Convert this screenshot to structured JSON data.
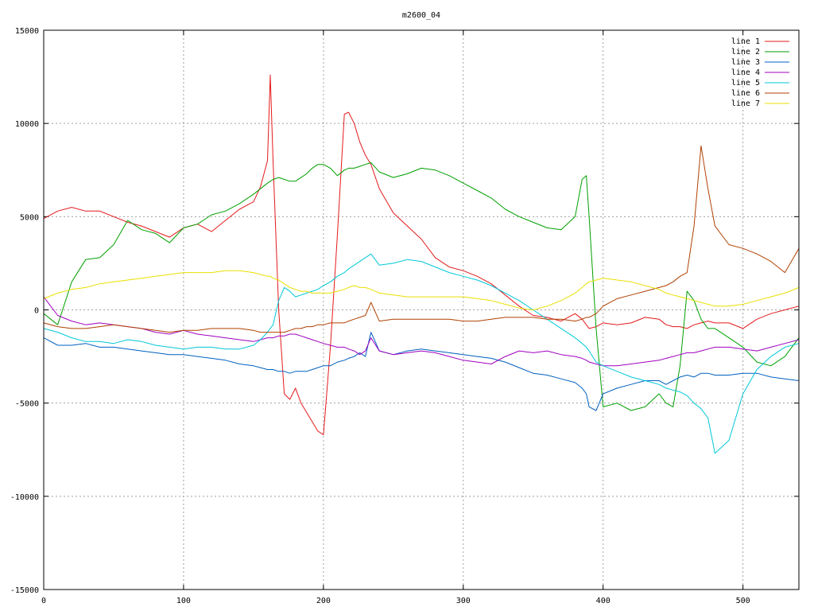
{
  "chart_data": {
    "type": "line",
    "title": "m2600_04",
    "xlabel": "",
    "ylabel": "",
    "xlim": [
      0,
      540
    ],
    "ylim": [
      -15000,
      15000
    ],
    "x_ticks": [
      0,
      100,
      200,
      300,
      400,
      500
    ],
    "y_ticks": [
      -15000,
      -10000,
      -5000,
      0,
      5000,
      10000,
      15000
    ],
    "grid": true,
    "legend_position": "top-right",
    "x": [
      0,
      10,
      20,
      30,
      40,
      50,
      60,
      70,
      80,
      90,
      100,
      110,
      120,
      130,
      140,
      150,
      155,
      160,
      162,
      164,
      168,
      172,
      176,
      180,
      184,
      188,
      192,
      196,
      200,
      205,
      210,
      215,
      218,
      222,
      226,
      230,
      234,
      240,
      250,
      260,
      270,
      280,
      290,
      300,
      310,
      320,
      330,
      340,
      350,
      360,
      370,
      380,
      385,
      388,
      390,
      395,
      400,
      410,
      420,
      430,
      440,
      445,
      450,
      455,
      460,
      465,
      470,
      475,
      480,
      490,
      500,
      510,
      520,
      530,
      540
    ],
    "series": [
      {
        "name": "line 1",
        "color": "#e41a1c",
        "values": [
          4900,
          5300,
          5500,
          5300,
          5300,
          5000,
          4700,
          4500,
          4200,
          3900,
          4400,
          4600,
          4200,
          4800,
          5400,
          5800,
          6600,
          8000,
          12600,
          8000,
          0,
          -4500,
          -4800,
          -4200,
          -5000,
          -5500,
          -6000,
          -6500,
          -6700,
          -2000,
          4000,
          10500,
          10600,
          10000,
          9000,
          8300,
          7800,
          6500,
          5200,
          4500,
          3800,
          2800,
          2300,
          2100,
          1800,
          1400,
          800,
          200,
          -300,
          -400,
          -600,
          -200,
          -500,
          -800,
          -1000,
          -900,
          -700,
          -800,
          -700,
          -400,
          -500,
          -800,
          -900,
          -900,
          -1000,
          -800,
          -700,
          -600,
          -700,
          -700,
          -1000,
          -500,
          -200,
          0,
          200
        ]
      },
      {
        "name": "line 2",
        "color": "#00a000",
        "values": [
          -200,
          -800,
          1500,
          2700,
          2800,
          3500,
          4800,
          4300,
          4100,
          3600,
          4400,
          4600,
          5100,
          5300,
          5700,
          6200,
          6500,
          6800,
          6900,
          7000,
          7100,
          7000,
          6900,
          6900,
          7100,
          7300,
          7600,
          7800,
          7800,
          7600,
          7200,
          7500,
          7600,
          7600,
          7700,
          7800,
          7900,
          7400,
          7100,
          7300,
          7600,
          7500,
          7200,
          6800,
          6400,
          6000,
          5400,
          5000,
          4700,
          4400,
          4300,
          5000,
          7000,
          7200,
          5000,
          -1000,
          -5200,
          -5000,
          -5400,
          -5200,
          -4500,
          -5000,
          -5200,
          -3000,
          1000,
          500,
          -500,
          -1000,
          -1000,
          -1500,
          -2000,
          -2800,
          -3000,
          -2500,
          -1500
        ]
      },
      {
        "name": "line 3",
        "color": "#0060c0",
        "values": [
          -1500,
          -1900,
          -1900,
          -1800,
          -2000,
          -2000,
          -2100,
          -2200,
          -2300,
          -2400,
          -2400,
          -2500,
          -2600,
          -2700,
          -2900,
          -3000,
          -3100,
          -3200,
          -3200,
          -3200,
          -3300,
          -3300,
          -3400,
          -3300,
          -3300,
          -3300,
          -3200,
          -3100,
          -3000,
          -3000,
          -2800,
          -2700,
          -2600,
          -2500,
          -2300,
          -2500,
          -1200,
          -2200,
          -2400,
          -2200,
          -2100,
          -2200,
          -2300,
          -2400,
          -2500,
          -2600,
          -2800,
          -3100,
          -3400,
          -3500,
          -3700,
          -3900,
          -4200,
          -4500,
          -5200,
          -5400,
          -4500,
          -4200,
          -4000,
          -3800,
          -3800,
          -4000,
          -3800,
          -3600,
          -3500,
          -3600,
          -3400,
          -3400,
          -3500,
          -3500,
          -3400,
          -3400,
          -3600,
          -3700,
          -3800
        ]
      },
      {
        "name": "line 4",
        "color": "#a000c0",
        "values": [
          700,
          -300,
          -600,
          -800,
          -700,
          -800,
          -900,
          -1000,
          -1200,
          -1300,
          -1100,
          -1300,
          -1400,
          -1500,
          -1600,
          -1700,
          -1600,
          -1500,
          -1500,
          -1500,
          -1400,
          -1400,
          -1300,
          -1300,
          -1400,
          -1500,
          -1600,
          -1700,
          -1800,
          -1900,
          -2000,
          -2000,
          -2100,
          -2200,
          -2400,
          -2200,
          -1500,
          -2200,
          -2400,
          -2300,
          -2200,
          -2300,
          -2500,
          -2700,
          -2800,
          -2900,
          -2500,
          -2200,
          -2300,
          -2200,
          -2400,
          -2500,
          -2600,
          -2700,
          -2800,
          -2900,
          -3000,
          -3000,
          -2900,
          -2800,
          -2700,
          -2600,
          -2500,
          -2400,
          -2300,
          -2300,
          -2200,
          -2100,
          -2000,
          -2000,
          -2100,
          -2200,
          -2000,
          -1800,
          -1600
        ]
      },
      {
        "name": "line 5",
        "color": "#00c8d8",
        "values": [
          -1000,
          -1200,
          -1500,
          -1700,
          -1700,
          -1800,
          -1600,
          -1700,
          -1900,
          -2000,
          -2100,
          -2000,
          -2000,
          -2100,
          -2100,
          -1900,
          -1600,
          -1200,
          -1000,
          -800,
          500,
          1200,
          1000,
          700,
          800,
          900,
          1000,
          1100,
          1300,
          1500,
          1800,
          2000,
          2200,
          2400,
          2600,
          2800,
          3000,
          2400,
          2500,
          2700,
          2600,
          2300,
          2000,
          1800,
          1600,
          1300,
          900,
          500,
          0,
          -500,
          -1000,
          -1500,
          -1800,
          -2000,
          -2200,
          -2800,
          -3000,
          -3300,
          -3600,
          -3800,
          -4000,
          -4200,
          -4300,
          -4400,
          -4600,
          -5000,
          -5300,
          -5800,
          -7700,
          -7000,
          -4500,
          -3200,
          -2500,
          -2000,
          -1800
        ]
      },
      {
        "name": "line 6",
        "color": "#b04000",
        "values": [
          -700,
          -900,
          -1000,
          -1000,
          -900,
          -800,
          -900,
          -1000,
          -1100,
          -1200,
          -1100,
          -1100,
          -1000,
          -1000,
          -1000,
          -1100,
          -1200,
          -1200,
          -1200,
          -1200,
          -1200,
          -1200,
          -1100,
          -1000,
          -1000,
          -900,
          -900,
          -800,
          -800,
          -700,
          -700,
          -700,
          -600,
          -500,
          -400,
          -300,
          400,
          -600,
          -500,
          -500,
          -500,
          -500,
          -500,
          -600,
          -600,
          -500,
          -400,
          -400,
          -400,
          -500,
          -500,
          -600,
          -500,
          -400,
          -400,
          -200,
          200,
          600,
          800,
          1000,
          1200,
          1300,
          1500,
          1800,
          2000,
          4500,
          8800,
          6500,
          4500,
          3500,
          3300,
          3000,
          2600,
          2000,
          3300
        ]
      },
      {
        "name": "line 7",
        "color": "#e8e000",
        "values": [
          600,
          900,
          1100,
          1200,
          1400,
          1500,
          1600,
          1700,
          1800,
          1900,
          2000,
          2000,
          2000,
          2100,
          2100,
          2000,
          1900,
          1800,
          1800,
          1700,
          1600,
          1400,
          1200,
          1100,
          1000,
          1000,
          900,
          900,
          900,
          900,
          1000,
          1100,
          1200,
          1300,
          1200,
          1200,
          1100,
          900,
          800,
          700,
          700,
          700,
          700,
          700,
          600,
          500,
          300,
          100,
          0,
          200,
          500,
          900,
          1200,
          1400,
          1500,
          1600,
          1700,
          1600,
          1500,
          1300,
          1100,
          900,
          800,
          700,
          600,
          500,
          400,
          300,
          200,
          200,
          300,
          500,
          700,
          900,
          1200
        ]
      }
    ]
  }
}
